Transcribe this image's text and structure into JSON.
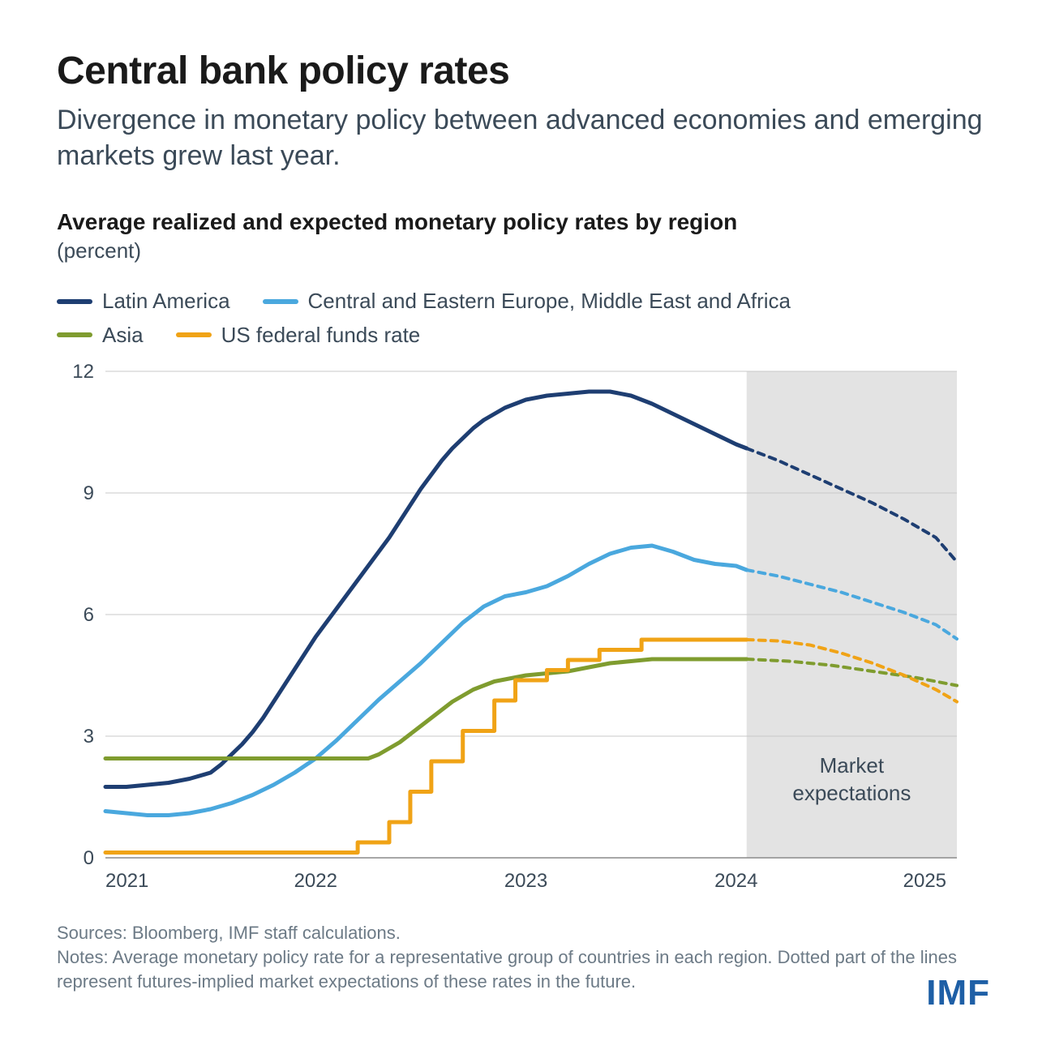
{
  "header": {
    "title": "Central bank policy rates",
    "subtitle": "Divergence in monetary policy between advanced economies and emerging markets grew last year."
  },
  "chart": {
    "type": "line",
    "title": "Average realized and expected monetary policy rates by region",
    "unit_label": "(percent)",
    "background_color": "#ffffff",
    "grid_color": "#c9c9c9",
    "axis_color": "#6c7a86",
    "axis_font_size": 24,
    "line_width": 5,
    "dash_pattern": "8 7",
    "x": {
      "min": 2021.0,
      "max": 2025.05,
      "ticks": [
        2021,
        2022,
        2023,
        2024,
        2025
      ],
      "tick_labels": [
        "2021",
        "2022",
        "2023",
        "2024",
        "2025"
      ]
    },
    "y": {
      "min": 0,
      "max": 12,
      "ticks": [
        0,
        3,
        6,
        9,
        12
      ],
      "tick_labels": [
        "0",
        "3",
        "6",
        "9",
        "12"
      ]
    },
    "forecast_band": {
      "start_x": 2024.05,
      "end_x": 2025.05,
      "fill": "#e3e3e3",
      "label": "Market expectations",
      "label_color": "#3b4a58",
      "label_font_size": 26
    },
    "series": [
      {
        "id": "latin_america",
        "label": "Latin America",
        "color": "#1e3e72",
        "realized": [
          [
            2021.0,
            1.75
          ],
          [
            2021.1,
            1.75
          ],
          [
            2021.2,
            1.8
          ],
          [
            2021.3,
            1.85
          ],
          [
            2021.4,
            1.95
          ],
          [
            2021.5,
            2.1
          ],
          [
            2021.55,
            2.3
          ],
          [
            2021.6,
            2.55
          ],
          [
            2021.65,
            2.8
          ],
          [
            2021.7,
            3.1
          ],
          [
            2021.75,
            3.45
          ],
          [
            2021.8,
            3.85
          ],
          [
            2021.85,
            4.25
          ],
          [
            2021.9,
            4.65
          ],
          [
            2021.95,
            5.05
          ],
          [
            2022.0,
            5.45
          ],
          [
            2022.05,
            5.8
          ],
          [
            2022.1,
            6.15
          ],
          [
            2022.15,
            6.5
          ],
          [
            2022.2,
            6.85
          ],
          [
            2022.25,
            7.2
          ],
          [
            2022.3,
            7.55
          ],
          [
            2022.35,
            7.9
          ],
          [
            2022.4,
            8.3
          ],
          [
            2022.45,
            8.7
          ],
          [
            2022.5,
            9.1
          ],
          [
            2022.55,
            9.45
          ],
          [
            2022.6,
            9.8
          ],
          [
            2022.65,
            10.1
          ],
          [
            2022.7,
            10.35
          ],
          [
            2022.75,
            10.6
          ],
          [
            2022.8,
            10.8
          ],
          [
            2022.85,
            10.95
          ],
          [
            2022.9,
            11.1
          ],
          [
            2022.95,
            11.2
          ],
          [
            2023.0,
            11.3
          ],
          [
            2023.1,
            11.4
          ],
          [
            2023.2,
            11.45
          ],
          [
            2023.3,
            11.5
          ],
          [
            2023.4,
            11.5
          ],
          [
            2023.5,
            11.4
          ],
          [
            2023.6,
            11.2
          ],
          [
            2023.7,
            10.95
          ],
          [
            2023.8,
            10.7
          ],
          [
            2023.9,
            10.45
          ],
          [
            2024.0,
            10.2
          ],
          [
            2024.05,
            10.1
          ]
        ],
        "forecast": [
          [
            2024.05,
            10.1
          ],
          [
            2024.2,
            9.8
          ],
          [
            2024.35,
            9.45
          ],
          [
            2024.5,
            9.1
          ],
          [
            2024.65,
            8.75
          ],
          [
            2024.8,
            8.35
          ],
          [
            2024.95,
            7.9
          ],
          [
            2025.05,
            7.3
          ]
        ]
      },
      {
        "id": "ceemea",
        "label": "Central and Eastern Europe, Middle East and Africa",
        "color": "#4aa8de",
        "realized": [
          [
            2021.0,
            1.15
          ],
          [
            2021.1,
            1.1
          ],
          [
            2021.2,
            1.05
          ],
          [
            2021.3,
            1.05
          ],
          [
            2021.4,
            1.1
          ],
          [
            2021.5,
            1.2
          ],
          [
            2021.6,
            1.35
          ],
          [
            2021.7,
            1.55
          ],
          [
            2021.8,
            1.8
          ],
          [
            2021.9,
            2.1
          ],
          [
            2022.0,
            2.45
          ],
          [
            2022.1,
            2.9
          ],
          [
            2022.2,
            3.4
          ],
          [
            2022.3,
            3.9
          ],
          [
            2022.4,
            4.35
          ],
          [
            2022.5,
            4.8
          ],
          [
            2022.6,
            5.3
          ],
          [
            2022.7,
            5.8
          ],
          [
            2022.8,
            6.2
          ],
          [
            2022.9,
            6.45
          ],
          [
            2023.0,
            6.55
          ],
          [
            2023.1,
            6.7
          ],
          [
            2023.2,
            6.95
          ],
          [
            2023.3,
            7.25
          ],
          [
            2023.4,
            7.5
          ],
          [
            2023.5,
            7.65
          ],
          [
            2023.6,
            7.7
          ],
          [
            2023.7,
            7.55
          ],
          [
            2023.8,
            7.35
          ],
          [
            2023.9,
            7.25
          ],
          [
            2024.0,
            7.2
          ],
          [
            2024.05,
            7.1
          ]
        ],
        "forecast": [
          [
            2024.05,
            7.1
          ],
          [
            2024.2,
            6.95
          ],
          [
            2024.35,
            6.75
          ],
          [
            2024.5,
            6.55
          ],
          [
            2024.65,
            6.3
          ],
          [
            2024.8,
            6.05
          ],
          [
            2024.95,
            5.75
          ],
          [
            2025.05,
            5.4
          ]
        ]
      },
      {
        "id": "asia",
        "label": "Asia",
        "color": "#7f9c2f",
        "realized": [
          [
            2021.0,
            2.45
          ],
          [
            2021.2,
            2.45
          ],
          [
            2021.4,
            2.45
          ],
          [
            2021.6,
            2.45
          ],
          [
            2021.8,
            2.45
          ],
          [
            2022.0,
            2.45
          ],
          [
            2022.1,
            2.45
          ],
          [
            2022.2,
            2.45
          ],
          [
            2022.25,
            2.45
          ],
          [
            2022.3,
            2.55
          ],
          [
            2022.35,
            2.7
          ],
          [
            2022.4,
            2.85
          ],
          [
            2022.45,
            3.05
          ],
          [
            2022.5,
            3.25
          ],
          [
            2022.55,
            3.45
          ],
          [
            2022.6,
            3.65
          ],
          [
            2022.65,
            3.85
          ],
          [
            2022.7,
            4.0
          ],
          [
            2022.75,
            4.15
          ],
          [
            2022.8,
            4.25
          ],
          [
            2022.85,
            4.35
          ],
          [
            2022.9,
            4.4
          ],
          [
            2022.95,
            4.45
          ],
          [
            2023.0,
            4.5
          ],
          [
            2023.1,
            4.55
          ],
          [
            2023.2,
            4.6
          ],
          [
            2023.3,
            4.7
          ],
          [
            2023.4,
            4.8
          ],
          [
            2023.5,
            4.85
          ],
          [
            2023.6,
            4.9
          ],
          [
            2023.7,
            4.9
          ],
          [
            2023.8,
            4.9
          ],
          [
            2023.9,
            4.9
          ],
          [
            2024.0,
            4.9
          ],
          [
            2024.05,
            4.9
          ]
        ],
        "forecast": [
          [
            2024.05,
            4.9
          ],
          [
            2024.25,
            4.85
          ],
          [
            2024.45,
            4.75
          ],
          [
            2024.65,
            4.6
          ],
          [
            2024.85,
            4.45
          ],
          [
            2025.05,
            4.25
          ]
        ]
      },
      {
        "id": "us_ffr",
        "label": "US federal funds rate",
        "color": "#f0a316",
        "step": true,
        "realized": [
          [
            2021.0,
            0.13
          ],
          [
            2022.2,
            0.13
          ],
          [
            2022.2,
            0.38
          ],
          [
            2022.35,
            0.38
          ],
          [
            2022.35,
            0.88
          ],
          [
            2022.45,
            0.88
          ],
          [
            2022.45,
            1.63
          ],
          [
            2022.55,
            1.63
          ],
          [
            2022.55,
            2.38
          ],
          [
            2022.7,
            2.38
          ],
          [
            2022.7,
            3.13
          ],
          [
            2022.85,
            3.13
          ],
          [
            2022.85,
            3.88
          ],
          [
            2022.95,
            3.88
          ],
          [
            2022.95,
            4.38
          ],
          [
            2023.1,
            4.38
          ],
          [
            2023.1,
            4.63
          ],
          [
            2023.2,
            4.63
          ],
          [
            2023.2,
            4.88
          ],
          [
            2023.35,
            4.88
          ],
          [
            2023.35,
            5.13
          ],
          [
            2023.55,
            5.13
          ],
          [
            2023.55,
            5.38
          ],
          [
            2024.05,
            5.38
          ]
        ],
        "forecast": [
          [
            2024.05,
            5.38
          ],
          [
            2024.2,
            5.35
          ],
          [
            2024.35,
            5.25
          ],
          [
            2024.5,
            5.05
          ],
          [
            2024.65,
            4.8
          ],
          [
            2024.8,
            4.5
          ],
          [
            2024.95,
            4.15
          ],
          [
            2025.05,
            3.85
          ]
        ]
      }
    ],
    "legend_order": [
      "latin_america",
      "ceemea",
      "asia",
      "us_ffr"
    ]
  },
  "footer": {
    "sources": "Sources: Bloomberg, IMF staff calculations.",
    "notes": "Notes: Average monetary policy rate for a representative group of countries in each region. Dotted part of the lines represent futures-implied market expectations of these rates in the future.",
    "logo_text": "IMF",
    "logo_color": "#1e5fa6"
  }
}
